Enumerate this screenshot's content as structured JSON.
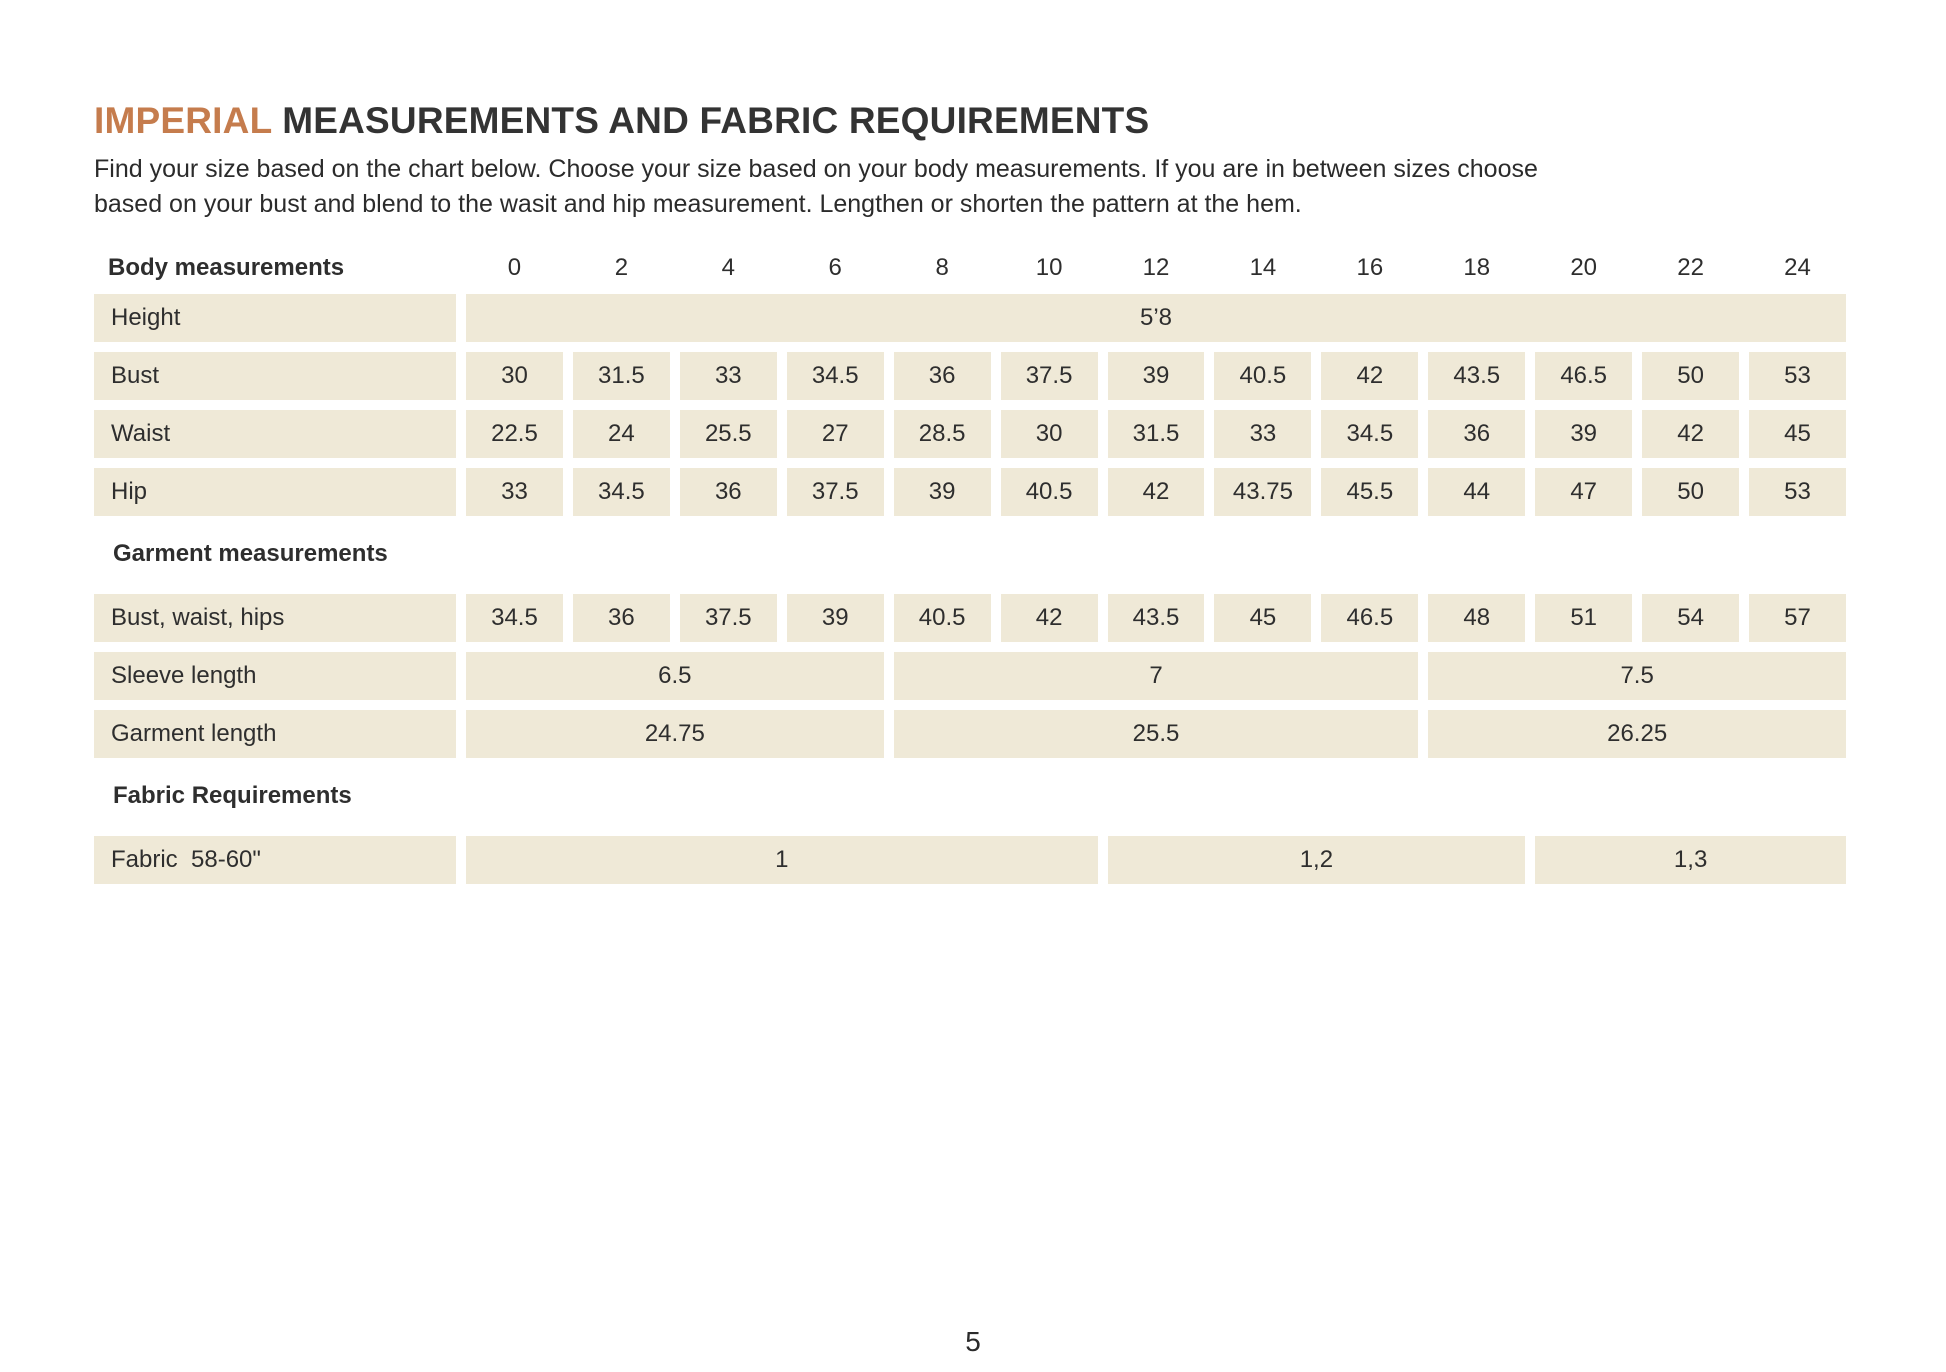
{
  "page": {
    "title_highlight": "IMPERIAL",
    "title_rest": " MEASUREMENTS AND FABRIC REQUIREMENTS",
    "subtitle_lines": [
      "Find your size based on the chart below. Choose your size based on your body measurements. If you are in between sizes choose",
      "based on your bust and blend to the wasit and hip measurement. Lengthen or shorten the pattern at the hem."
    ],
    "page_number": "5",
    "colors": {
      "accent": "#c57c4d",
      "cell_background": "#efe9d7",
      "text": "#2e2e2e"
    }
  },
  "table": {
    "size_header": {
      "label": "Body measurements",
      "sizes": [
        "0",
        "2",
        "4",
        "6",
        "8",
        "10",
        "12",
        "14",
        "16",
        "18",
        "20",
        "22",
        "24"
      ]
    },
    "sections": [
      {
        "name": "body-measurements",
        "title": "",
        "rows": [
          {
            "label": "Height",
            "cells": [
              {
                "span": 13,
                "value": "5’8"
              }
            ]
          },
          {
            "label": "Bust",
            "cells": [
              {
                "span": 1,
                "value": "30"
              },
              {
                "span": 1,
                "value": "31.5"
              },
              {
                "span": 1,
                "value": "33"
              },
              {
                "span": 1,
                "value": "34.5"
              },
              {
                "span": 1,
                "value": "36"
              },
              {
                "span": 1,
                "value": "37.5"
              },
              {
                "span": 1,
                "value": "39"
              },
              {
                "span": 1,
                "value": "40.5"
              },
              {
                "span": 1,
                "value": "42"
              },
              {
                "span": 1,
                "value": "43.5"
              },
              {
                "span": 1,
                "value": "46.5"
              },
              {
                "span": 1,
                "value": "50"
              },
              {
                "span": 1,
                "value": "53"
              }
            ]
          },
          {
            "label": "Waist",
            "cells": [
              {
                "span": 1,
                "value": "22.5"
              },
              {
                "span": 1,
                "value": "24"
              },
              {
                "span": 1,
                "value": "25.5"
              },
              {
                "span": 1,
                "value": "27"
              },
              {
                "span": 1,
                "value": "28.5"
              },
              {
                "span": 1,
                "value": "30"
              },
              {
                "span": 1,
                "value": "31.5"
              },
              {
                "span": 1,
                "value": "33"
              },
              {
                "span": 1,
                "value": "34.5"
              },
              {
                "span": 1,
                "value": "36"
              },
              {
                "span": 1,
                "value": "39"
              },
              {
                "span": 1,
                "value": "42"
              },
              {
                "span": 1,
                "value": "45"
              }
            ]
          },
          {
            "label": "Hip",
            "cells": [
              {
                "span": 1,
                "value": "33"
              },
              {
                "span": 1,
                "value": "34.5"
              },
              {
                "span": 1,
                "value": "36"
              },
              {
                "span": 1,
                "value": "37.5"
              },
              {
                "span": 1,
                "value": "39"
              },
              {
                "span": 1,
                "value": "40.5"
              },
              {
                "span": 1,
                "value": "42"
              },
              {
                "span": 1,
                "value": "43.75"
              },
              {
                "span": 1,
                "value": "45.5"
              },
              {
                "span": 1,
                "value": "44"
              },
              {
                "span": 1,
                "value": "47"
              },
              {
                "span": 1,
                "value": "50"
              },
              {
                "span": 1,
                "value": "53"
              }
            ]
          }
        ]
      },
      {
        "name": "garment-measurements",
        "title": "Garment measurements",
        "rows": [
          {
            "label": "Bust, waist, hips",
            "cells": [
              {
                "span": 1,
                "value": "34.5"
              },
              {
                "span": 1,
                "value": "36"
              },
              {
                "span": 1,
                "value": "37.5"
              },
              {
                "span": 1,
                "value": "39"
              },
              {
                "span": 1,
                "value": "40.5"
              },
              {
                "span": 1,
                "value": "42"
              },
              {
                "span": 1,
                "value": "43.5"
              },
              {
                "span": 1,
                "value": "45"
              },
              {
                "span": 1,
                "value": "46.5"
              },
              {
                "span": 1,
                "value": "48"
              },
              {
                "span": 1,
                "value": "51"
              },
              {
                "span": 1,
                "value": "54"
              },
              {
                "span": 1,
                "value": "57"
              }
            ]
          },
          {
            "label": "Sleeve length",
            "cells": [
              {
                "span": 4,
                "value": "6.5"
              },
              {
                "span": 5,
                "value": "7"
              },
              {
                "span": 4,
                "value": "7.5"
              }
            ]
          },
          {
            "label": "Garment length",
            "cells": [
              {
                "span": 4,
                "value": "24.75"
              },
              {
                "span": 5,
                "value": "25.5"
              },
              {
                "span": 4,
                "value": "26.25"
              }
            ]
          }
        ]
      },
      {
        "name": "fabric-requirements",
        "title": "Fabric Requirements",
        "rows": [
          {
            "label": "Fabric  58-60\"",
            "cells": [
              {
                "span": 6,
                "value": "1"
              },
              {
                "span": 4,
                "value": "1,2"
              },
              {
                "span": 3,
                "value": "1,3"
              }
            ]
          }
        ]
      }
    ]
  }
}
